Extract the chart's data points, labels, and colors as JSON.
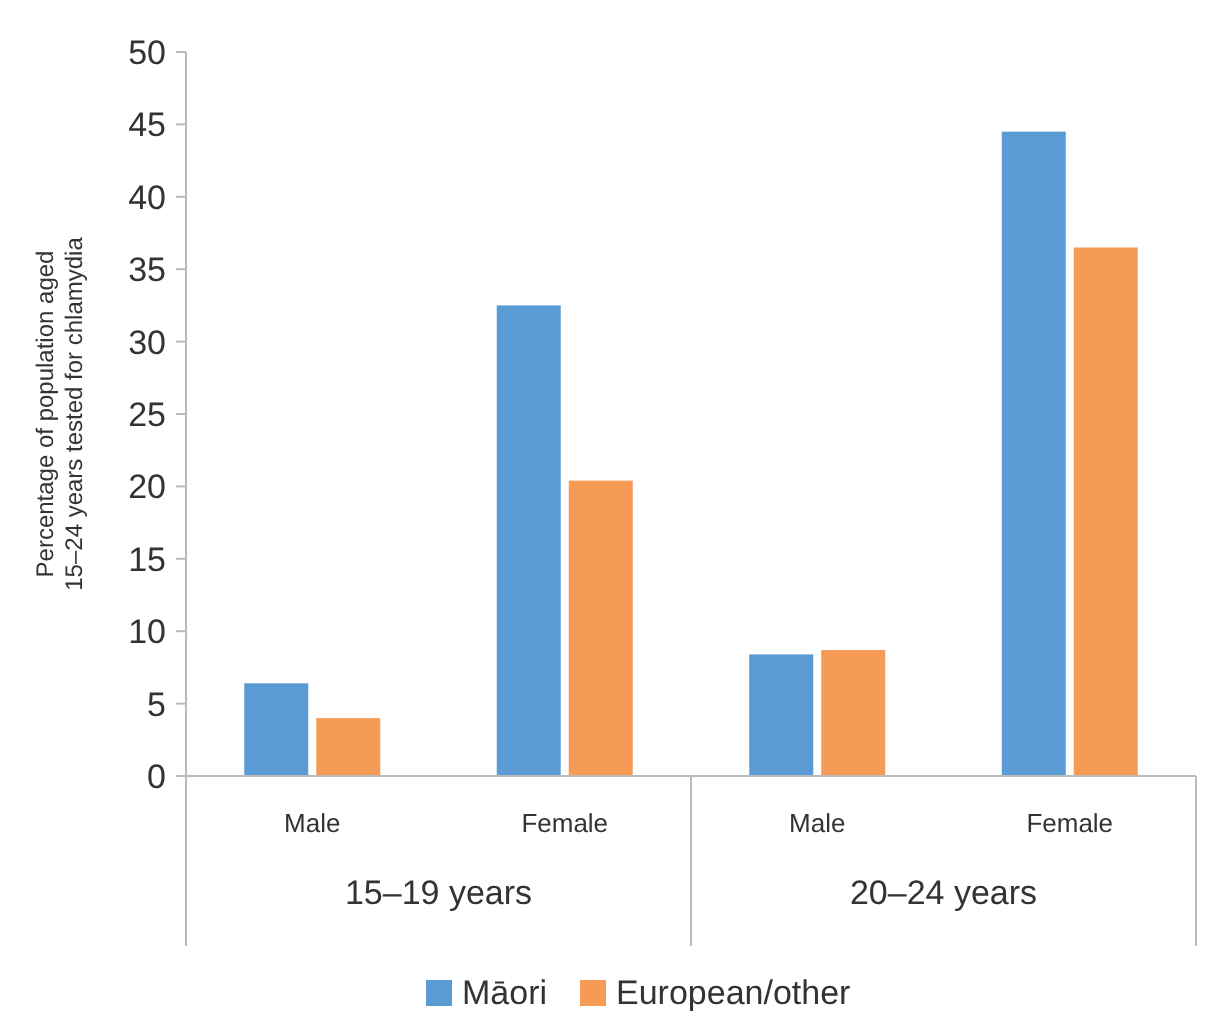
{
  "chart_data": {
    "type": "bar",
    "ylabel": "Percentage of population aged 15–24 years tested for chlamydia",
    "categories": [
      "Male",
      "Female",
      "Male",
      "Female"
    ],
    "series": [
      {
        "name": "Māori",
        "color": "#5b9bd5",
        "values": [
          6.4,
          32.5,
          8.4,
          44.5
        ]
      },
      {
        "name": "European/other",
        "color": "#f59b56",
        "values": [
          4.0,
          20.4,
          8.7,
          36.5
        ]
      }
    ],
    "annotations": [
      "15–19 years",
      "20–24 years"
    ],
    "ylim": [
      0,
      50
    ],
    "yticks": [
      0,
      5,
      10,
      15,
      20,
      25,
      30,
      35,
      40,
      45,
      50
    ],
    "grid": false,
    "legend": "bottom"
  }
}
